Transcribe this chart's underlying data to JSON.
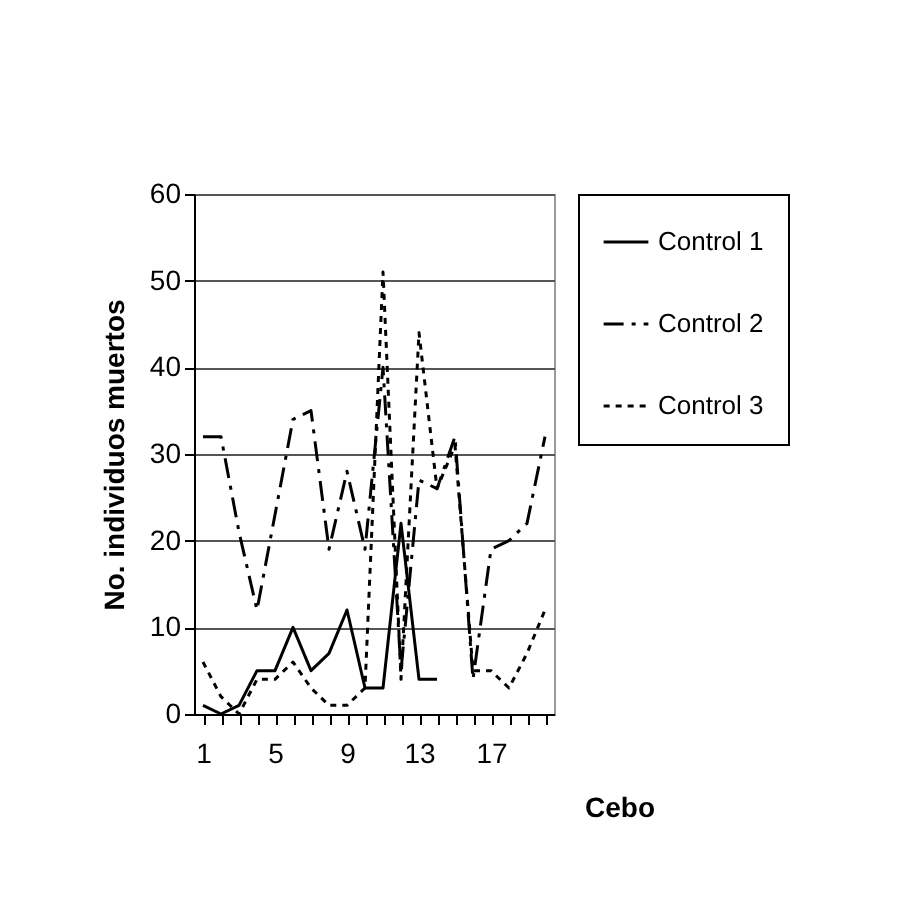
{
  "chart_data": {
    "type": "line",
    "xlabel": "Cebo",
    "ylabel": "No. individuos muertos",
    "categories": [
      "1",
      null,
      null,
      null,
      "5",
      null,
      null,
      null,
      "9",
      null,
      null,
      null,
      "13",
      null,
      null,
      null,
      "17",
      null,
      null,
      null
    ],
    "series": [
      {
        "name": "Control 1",
        "color": "#000000",
        "line_style": "solid",
        "values": [
          1,
          0,
          1,
          5,
          5,
          10,
          5,
          7,
          12,
          3,
          3,
          22,
          4,
          4,
          null,
          null,
          null,
          null,
          null,
          null
        ]
      },
      {
        "name": "Control 2",
        "color": "#000000",
        "line_style": "dashed",
        "values": [
          32,
          32,
          21,
          12,
          23,
          34,
          35,
          19,
          28,
          19,
          40,
          5,
          27,
          26,
          32,
          4,
          19,
          20,
          22,
          32
        ]
      },
      {
        "name": "Control 3",
        "color": "#000000",
        "line_style": "dotted",
        "values": [
          6,
          2,
          0,
          4,
          4,
          6,
          3,
          1,
          1,
          3,
          51,
          4,
          44,
          26,
          31,
          5,
          5,
          3,
          7,
          12
        ]
      }
    ],
    "ylim": [
      0,
      60
    ],
    "yticks": [
      0,
      10,
      20,
      30,
      40,
      50,
      60
    ],
    "grid": "y",
    "legend": "right",
    "marker": "none"
  }
}
